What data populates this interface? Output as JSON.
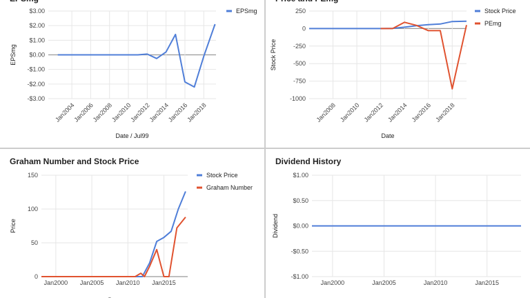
{
  "colors": {
    "blue": "#4f7ed8",
    "red": "#e0522f",
    "zero": "#999999",
    "grid": "#e6e6e6"
  },
  "chart_data": [
    {
      "type": "line",
      "title": "EPSmg",
      "xlabel": "Date / Jul99",
      "ylabel": "EPSmg",
      "xlim": [
        2001.5,
        2019.3
      ],
      "ylim": [
        -3,
        3
      ],
      "yticks": [
        {
          "v": 3,
          "label": "$3.00"
        },
        {
          "v": 2,
          "label": "$2.00"
        },
        {
          "v": 1,
          "label": "$1.00"
        },
        {
          "v": 0,
          "label": "$0.00"
        },
        {
          "v": -1,
          "label": "-$1.00"
        },
        {
          "v": -2,
          "label": "-$2.00"
        },
        {
          "v": -3,
          "label": "-$3.00"
        }
      ],
      "xticks": [
        {
          "v": 2004,
          "label": "Jan2004"
        },
        {
          "v": 2006,
          "label": "Jan2006"
        },
        {
          "v": 2008,
          "label": "Jan2008"
        },
        {
          "v": 2010,
          "label": "Jan2010"
        },
        {
          "v": 2012,
          "label": "Jan2012"
        },
        {
          "v": 2014,
          "label": "Jan2014"
        },
        {
          "v": 2016,
          "label": "Jan2016"
        },
        {
          "v": 2018,
          "label": "Jan2018"
        }
      ],
      "series": [
        {
          "name": "EPSmg",
          "color": "blue",
          "x": [
            2002.5,
            2011,
            2012,
            2013,
            2014,
            2015,
            2016,
            2017,
            2018,
            2019.2
          ],
          "y": [
            0,
            0,
            0.05,
            -0.25,
            0.2,
            1.4,
            -1.85,
            -2.2,
            -0.1,
            2.1
          ]
        }
      ]
    },
    {
      "type": "line",
      "title": "Price and PEmg",
      "xlabel": "Date",
      "ylabel": "Stock Price",
      "xlim": [
        2006,
        2019.2
      ],
      "ylim": [
        -1000,
        250
      ],
      "yticks": [
        {
          "v": 250,
          "label": "250"
        },
        {
          "v": 0,
          "label": "0"
        },
        {
          "v": -250,
          "label": "-250"
        },
        {
          "v": -500,
          "label": "-500"
        },
        {
          "v": -750,
          "label": "-750"
        },
        {
          "v": -1000,
          "label": "-1000"
        }
      ],
      "xticks": [
        {
          "v": 2008,
          "label": "Jan2008"
        },
        {
          "v": 2010,
          "label": "Jan2010"
        },
        {
          "v": 2012,
          "label": "Jan2012"
        },
        {
          "v": 2014,
          "label": "Jan2014"
        },
        {
          "v": 2016,
          "label": "Jan2016"
        },
        {
          "v": 2018,
          "label": "Jan2018"
        }
      ],
      "series": [
        {
          "name": "Stock Price",
          "color": "blue",
          "x": [
            2006,
            2012,
            2013,
            2014,
            2015,
            2016,
            2017,
            2018,
            2019.2
          ],
          "y": [
            0,
            0,
            3,
            20,
            40,
            55,
            65,
            100,
            105
          ]
        },
        {
          "name": "PEmg",
          "color": "red",
          "x": [
            2012,
            2013,
            2014,
            2015,
            2016,
            2017,
            2018,
            2019.2
          ],
          "y": [
            0,
            0,
            90,
            45,
            -30,
            -30,
            -860,
            50
          ]
        }
      ]
    },
    {
      "type": "line",
      "title": "Graham Number and Stock Price",
      "xlabel": "Date",
      "ylabel": "Price",
      "xlim": [
        1998,
        2018.3
      ],
      "ylim": [
        0,
        150
      ],
      "yticks": [
        {
          "v": 150,
          "label": "150"
        },
        {
          "v": 100,
          "label": "100"
        },
        {
          "v": 50,
          "label": "50"
        },
        {
          "v": 0,
          "label": "0"
        }
      ],
      "xticks": [
        {
          "v": 2000,
          "label": "Jan2000"
        },
        {
          "v": 2005,
          "label": "Jan2005"
        },
        {
          "v": 2010,
          "label": "Jan2010"
        },
        {
          "v": 2015,
          "label": "Jan2015"
        }
      ],
      "series": [
        {
          "name": "Stock Price",
          "color": "blue",
          "x": [
            1998,
            2011,
            2012,
            2013,
            2014,
            2015,
            2016,
            2017,
            2018
          ],
          "y": [
            0,
            0,
            0,
            20,
            52,
            58,
            67,
            100,
            126
          ]
        },
        {
          "name": "Graham Number",
          "color": "red",
          "x": [
            1998,
            2011,
            2011.8,
            2012.3,
            2013,
            2014,
            2015,
            2015.7,
            2016.8,
            2018
          ],
          "y": [
            0,
            0,
            5,
            0,
            15,
            40,
            0,
            0,
            72,
            88
          ]
        }
      ]
    },
    {
      "type": "line",
      "title": "Dividend History",
      "xlabel": "",
      "ylabel": "Dividend",
      "xlim": [
        1998,
        2018.3
      ],
      "ylim": [
        -1,
        1
      ],
      "yticks": [
        {
          "v": 1,
          "label": "$1.00"
        },
        {
          "v": 0.5,
          "label": "$0.50"
        },
        {
          "v": 0,
          "label": "$0.00"
        },
        {
          "v": -0.5,
          "label": "-$0.50"
        },
        {
          "v": -1,
          "label": "-$1.00"
        }
      ],
      "xticks": [
        {
          "v": 2000,
          "label": "Jan2000"
        },
        {
          "v": 2005,
          "label": "Jan2005"
        },
        {
          "v": 2010,
          "label": "Jan2010"
        },
        {
          "v": 2015,
          "label": "Jan2015"
        }
      ],
      "series": [
        {
          "name": "",
          "color": "blue",
          "x": [
            1998,
            2018.3
          ],
          "y": [
            0,
            0
          ]
        }
      ]
    }
  ]
}
